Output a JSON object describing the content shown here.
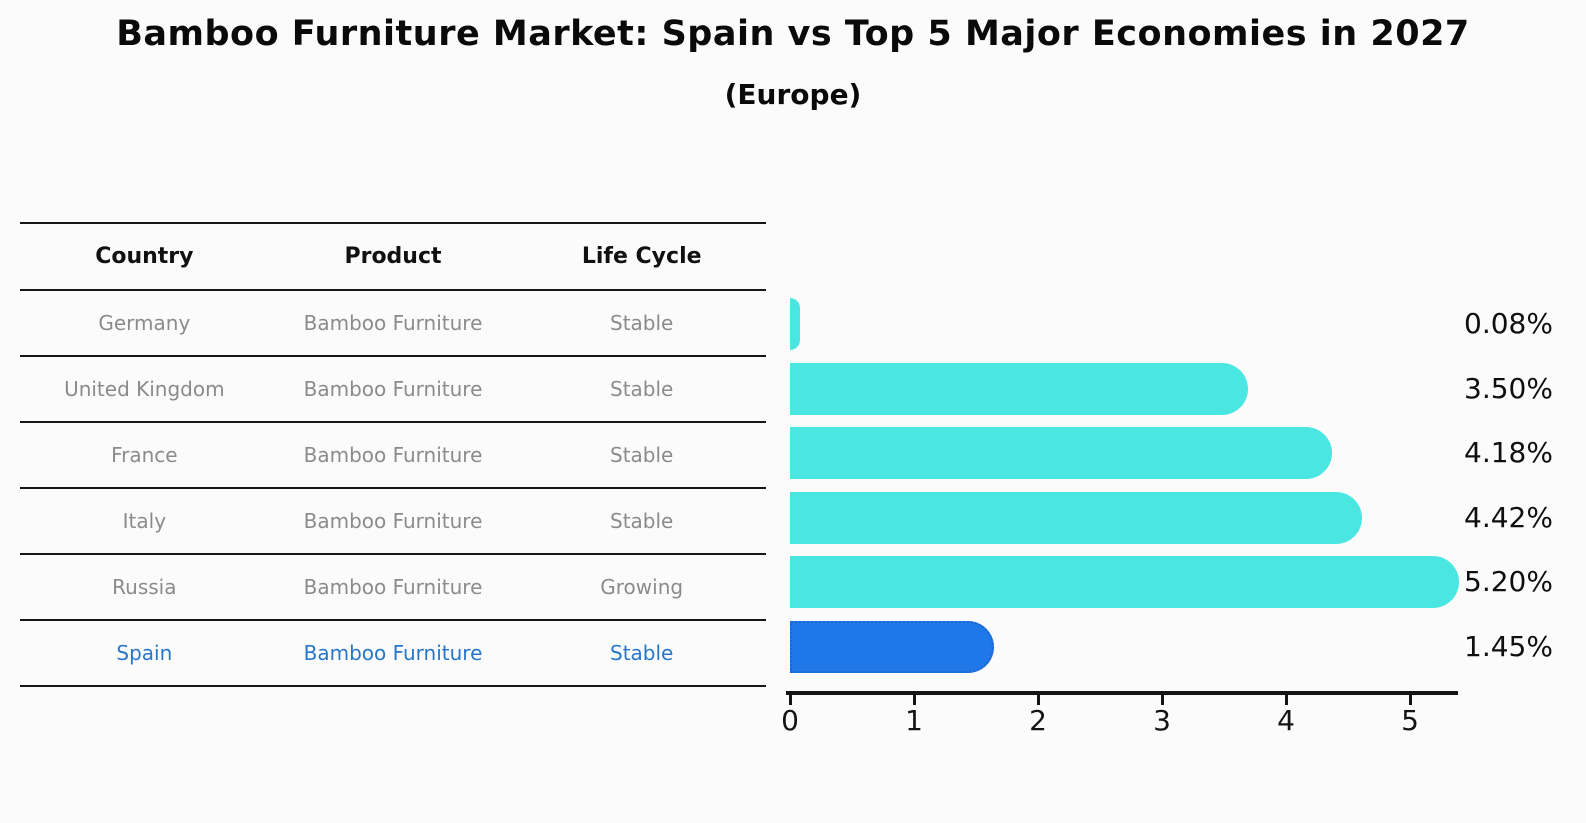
{
  "title": "Bamboo Furniture Market: Spain vs Top 5 Major Economies in 2027",
  "subtitle": "(Europe)",
  "table": {
    "headers": [
      "Country",
      "Product",
      "Life Cycle"
    ],
    "rows": [
      {
        "country": "Germany",
        "product": "Bamboo Furniture",
        "life_cycle": "Stable"
      },
      {
        "country": "United Kingdom",
        "product": "Bamboo Furniture",
        "life_cycle": "Stable"
      },
      {
        "country": "France",
        "product": "Bamboo Furniture",
        "life_cycle": "Stable"
      },
      {
        "country": "Italy",
        "product": "Bamboo Furniture",
        "life_cycle": "Stable"
      },
      {
        "country": "Russia",
        "product": "Bamboo Furniture",
        "life_cycle": "Growing"
      },
      {
        "country": "Spain",
        "product": "Bamboo Furniture",
        "life_cycle": "Stable"
      }
    ],
    "highlight_row": "Spain"
  },
  "chart_data": {
    "type": "bar",
    "orientation": "horizontal",
    "categories": [
      "Germany",
      "United Kingdom",
      "France",
      "Italy",
      "Russia",
      "Spain"
    ],
    "values": [
      0.08,
      3.5,
      4.18,
      4.42,
      5.2,
      1.45
    ],
    "value_labels": [
      "0.08%",
      "3.50%",
      "4.18%",
      "4.42%",
      "5.20%",
      "1.45%"
    ],
    "x_ticks": [
      0,
      1,
      2,
      3,
      4,
      5
    ],
    "x_tick_labels": [
      "0",
      "1",
      "2",
      "3",
      "4",
      "5"
    ],
    "xlim": [
      0,
      5.4
    ],
    "grid": false,
    "legend": false,
    "highlight_index": 5,
    "colors": {
      "default_bar": "#4ae6e2",
      "highlight_bar": "#2077e8",
      "highlight_border": "#1b66cf",
      "row_text": "#8b8b8b",
      "highlight_text": "#2677c9",
      "axis": "#141414"
    }
  }
}
